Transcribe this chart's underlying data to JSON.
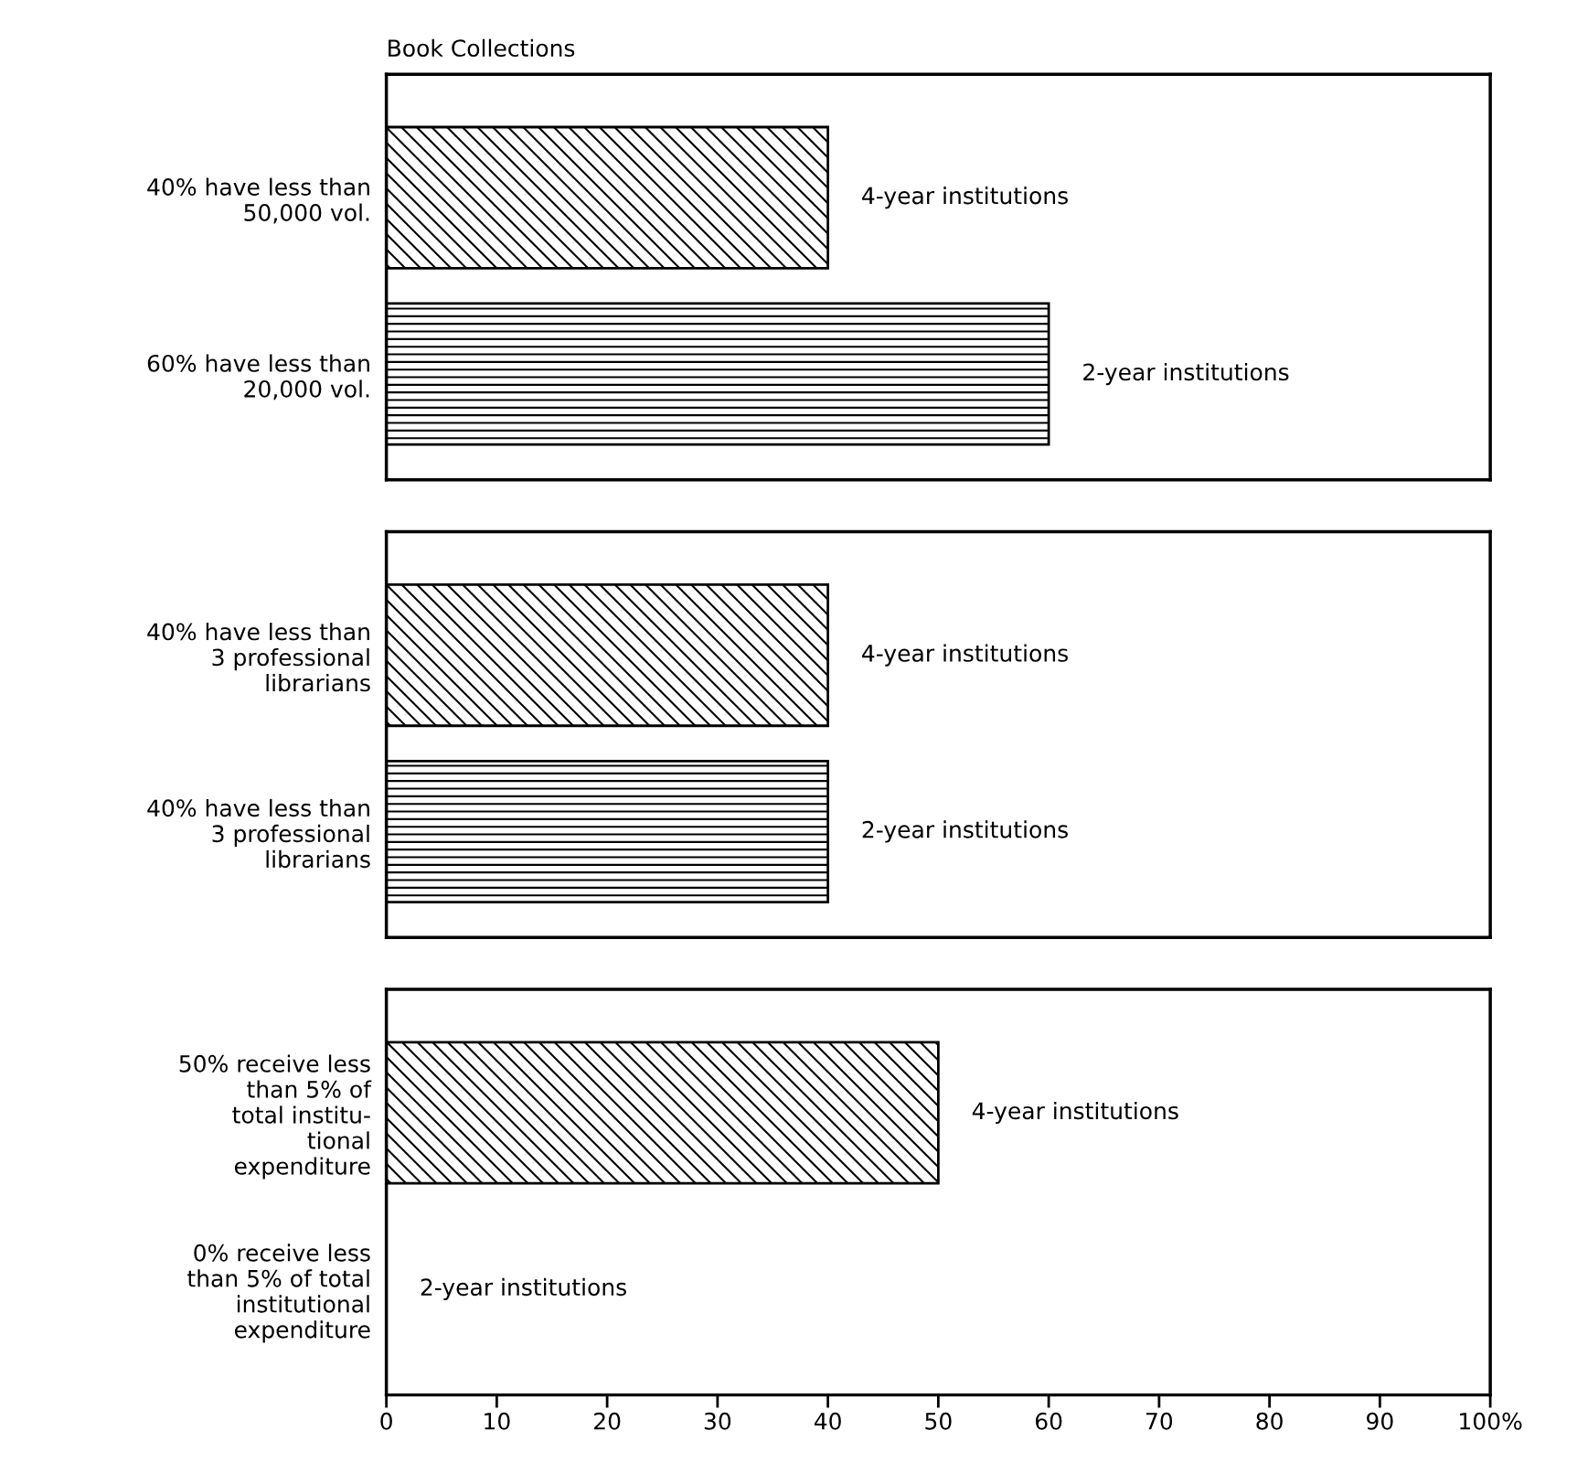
{
  "chart_data": [
    {
      "type": "bar",
      "orientation": "horizontal",
      "title": "Book Collections",
      "categories": [
        "40% have less than\n50,000 vol.",
        "60% have less than\n20,000 vol."
      ],
      "series": [
        {
          "name": "4-year institutions",
          "color": "#000000",
          "values": [
            40,
            null
          ]
        },
        {
          "name": "2-year institutions",
          "color": "#000000",
          "values": [
            null,
            60
          ]
        }
      ],
      "xlim": [
        0,
        100
      ],
      "tick_labels": "y"
    },
    {
      "type": "bar",
      "orientation": "horizontal",
      "categories": [
        "40% have less than\n3 professional\nlibrarians",
        "40% have less than\n3 professional\nlibrarians"
      ],
      "series": [
        {
          "name": "4-year institutions",
          "color": "#000000",
          "values": [
            40,
            null
          ]
        },
        {
          "name": "2-year institutions",
          "color": "#000000",
          "values": [
            null,
            40
          ]
        }
      ],
      "xlim": [
        0,
        100
      ],
      "tick_labels": "y"
    },
    {
      "type": "bar",
      "orientation": "horizontal",
      "categories": [
        "50% receive less\nthan 5% of\ntotal institu-\ntional\nexpenditure",
        "0% receive less\nthan 5% of total\ninstitutional\nexpenditure"
      ],
      "series": [
        {
          "name": "4-year institutions",
          "color": "#000000",
          "values": [
            50,
            null
          ]
        },
        {
          "name": "2-year institutions",
          "color": "#000000",
          "values": [
            null,
            0
          ]
        }
      ],
      "xlim": [
        0,
        100
      ],
      "xticks": [
        0,
        10,
        20,
        30,
        40,
        50,
        60,
        70,
        80,
        90,
        {
          "value": 100,
          "label": "100%"
        }
      ]
    }
  ]
}
